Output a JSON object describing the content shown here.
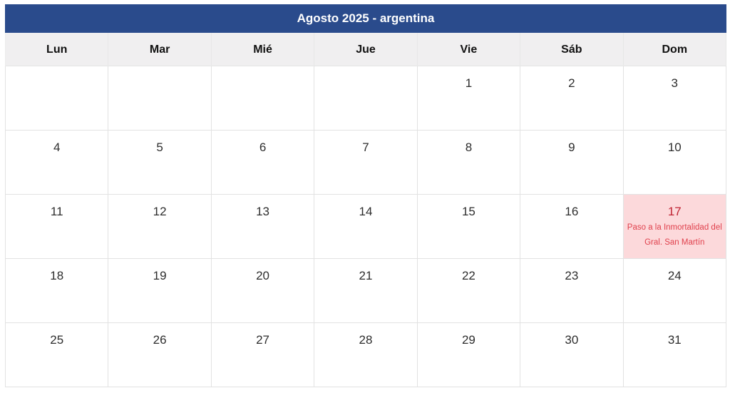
{
  "calendar": {
    "title": "Agosto 2025 - argentina",
    "day_headers": [
      "Lun",
      "Mar",
      "Mié",
      "Jue",
      "Vie",
      "Sáb",
      "Dom"
    ],
    "weeks": [
      [
        "",
        "",
        "",
        "",
        "1",
        "2",
        "3"
      ],
      [
        "4",
        "5",
        "6",
        "7",
        "8",
        "9",
        "10"
      ],
      [
        "11",
        "12",
        "13",
        "14",
        "15",
        "16",
        "17"
      ],
      [
        "18",
        "19",
        "20",
        "21",
        "22",
        "23",
        "24"
      ],
      [
        "25",
        "26",
        "27",
        "28",
        "29",
        "30",
        "31"
      ]
    ],
    "holidays": [
      {
        "date": "17",
        "name_lines": [
          "Paso a la Inmortalidad del",
          "Gral. San Martín"
        ]
      }
    ],
    "colors": {
      "title_bg": "#2a4b8c",
      "title_text": "#ffffff",
      "day_header_bg": "#f0eff0",
      "grid_border": "#e2e2e2",
      "date_text": "#2d2d2d",
      "holiday_bg": "#fcd9db",
      "holiday_date_text": "#bf2433",
      "holiday_name_text": "#e0414d"
    }
  }
}
